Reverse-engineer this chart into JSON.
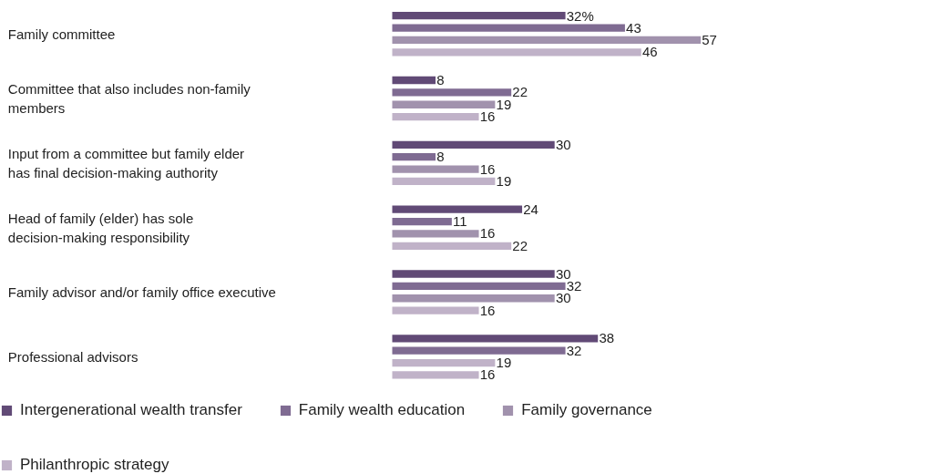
{
  "chart_data": {
    "type": "bar",
    "orientation": "horizontal",
    "categories": [
      "Family committee",
      "Committee that also includes non-family\nmembers",
      "Input from a committee but family elder\nhas final decision-making authority",
      "Head of family (elder) has sole\ndecision-making responsibility",
      "Family advisor and/or family office executive",
      "Professional advisors"
    ],
    "series": [
      {
        "name": "Intergenerational wealth transfer",
        "color": "#614a76",
        "values": [
          32,
          8,
          30,
          24,
          30,
          38
        ],
        "value_labels": [
          "32%",
          "8",
          "30",
          "24",
          "30",
          "38"
        ]
      },
      {
        "name": "Family wealth education",
        "color": "#7f6b92",
        "values": [
          43,
          22,
          8,
          11,
          32,
          32
        ],
        "value_labels": [
          "43",
          "22",
          "8",
          "11",
          "32",
          "32"
        ]
      },
      {
        "name": "Family governance",
        "color": "#a192ad",
        "colors": [
          null,
          null,
          null,
          null,
          null,
          "#c0b2c8"
        ],
        "values": [
          57,
          19,
          16,
          16,
          30,
          19
        ],
        "value_labels": [
          "57",
          "19",
          "16",
          "16",
          "30",
          "19"
        ]
      },
      {
        "name": "Philanthropic strategy",
        "color": "#c0b2c8",
        "values": [
          46,
          16,
          19,
          22,
          16,
          16
        ],
        "value_labels": [
          "46",
          "16",
          "19",
          "22",
          "16",
          "16"
        ]
      }
    ],
    "xlim": [
      0,
      100
    ],
    "tick_labels": false,
    "grid": false,
    "legend": "bottom"
  }
}
